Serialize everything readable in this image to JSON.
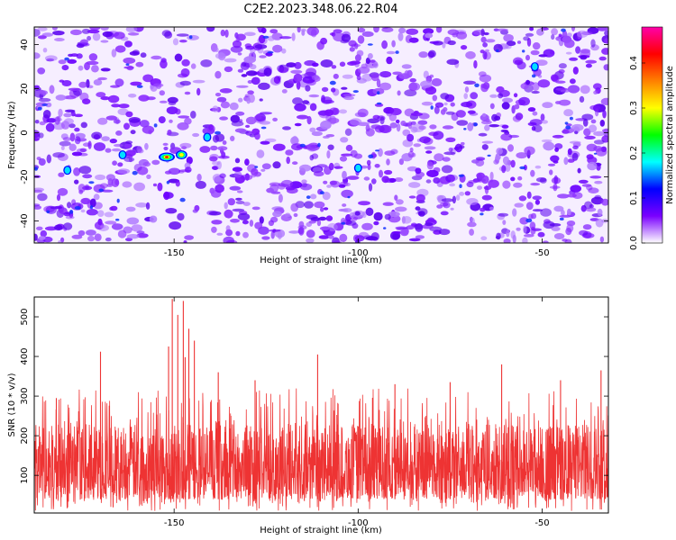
{
  "title": "C2E2.2023.348.06.22.R04",
  "chart_data": [
    {
      "type": "heatmap",
      "xlabel": "Height of straight line (km)",
      "ylabel": "Frequency (Hz)",
      "xlim": [
        -188,
        -32
      ],
      "ylim": [
        -50,
        48
      ],
      "xticks": [
        -150,
        -100,
        -50
      ],
      "yticks": [
        -40,
        -20,
        0,
        20,
        40
      ],
      "grid": false,
      "colorbar": {
        "label": "Normalized spectral amplitude",
        "range": [
          0,
          0.48
        ],
        "ticks": [
          "0.0",
          "0.1",
          "0.2",
          "0.3",
          "0.4"
        ],
        "colors": [
          "#ffffff",
          "#7a00ff",
          "#0000ff",
          "#00ffff",
          "#00ff00",
          "#ffff00",
          "#ff8000",
          "#ff0000",
          "#ff00aa"
        ]
      },
      "hotspots": [
        {
          "x": -152,
          "y": -11,
          "value": 0.35
        },
        {
          "x": -148,
          "y": -10,
          "value": 0.25
        },
        {
          "x": -164,
          "y": -10,
          "value": 0.12
        },
        {
          "x": -179,
          "y": -17,
          "value": 0.1
        },
        {
          "x": -141,
          "y": -2,
          "value": 0.1
        },
        {
          "x": -100,
          "y": -16,
          "value": 0.1
        },
        {
          "x": -52,
          "y": 30,
          "value": 0.08
        }
      ]
    },
    {
      "type": "line",
      "xlabel": "Height of straight line (km)",
      "ylabel": "SNR (10 * v/v)",
      "xlim": [
        -188,
        -32
      ],
      "ylim": [
        5,
        550
      ],
      "xticks": [
        -150,
        -100,
        -50
      ],
      "yticks": [
        100,
        200,
        300,
        400,
        500
      ],
      "grid": false,
      "color": "#ee3333",
      "baseline_band": [
        40,
        230
      ],
      "peaks": [
        {
          "x": -150.5,
          "y": 545
        },
        {
          "x": -147.5,
          "y": 540
        },
        {
          "x": -149,
          "y": 505
        },
        {
          "x": -146,
          "y": 470
        },
        {
          "x": -144.5,
          "y": 440
        },
        {
          "x": -151.5,
          "y": 425
        },
        {
          "x": -170,
          "y": 412
        },
        {
          "x": -111,
          "y": 405
        },
        {
          "x": -147,
          "y": 398
        },
        {
          "x": -138,
          "y": 360
        },
        {
          "x": -182,
          "y": 295
        },
        {
          "x": -61,
          "y": 380
        },
        {
          "x": -34,
          "y": 365
        },
        {
          "x": -128,
          "y": 340
        },
        {
          "x": -90,
          "y": 330
        },
        {
          "x": -75,
          "y": 335
        },
        {
          "x": -45,
          "y": 340
        }
      ]
    }
  ]
}
